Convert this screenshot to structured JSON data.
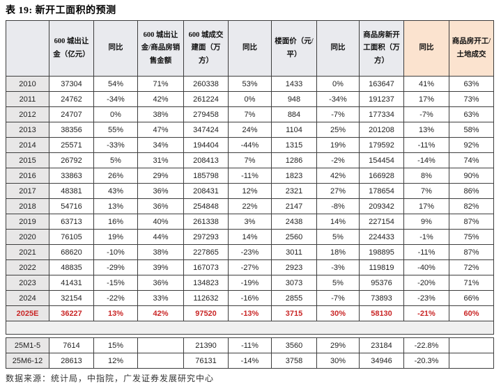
{
  "title": "表 19: 新开工面积的预测",
  "source_note": "数据来源：统计局，中指院，广发证券发展研究中心",
  "colors": {
    "header_bg": "#e9eaee",
    "forecast_header_bg": "#fbe3cf",
    "row_label_bg": "#e8e7e7",
    "separator_bg": "#f0f0f0",
    "forecast_red": "#c92525",
    "border": "#3c3c3c"
  },
  "chart_data": {
    "type": "table",
    "title": "表 19: 新开工面积的预测",
    "columns": [
      "",
      "600 城出让金（亿元）",
      "同比",
      "600 城出让金/商品房销售金额",
      "600 城成交建面（万方）",
      "同比",
      "楼面价（元/平）",
      "同比",
      "商品房新开工面积（万方）",
      "同比",
      "商品房开工/土地成交"
    ],
    "highlight_columns": [
      8,
      9,
      10
    ],
    "rows": [
      {
        "label": "2010",
        "red": false,
        "values": [
          "37304",
          "54%",
          "71%",
          "260338",
          "53%",
          "1433",
          "0%",
          "163647",
          "41%",
          "63%"
        ]
      },
      {
        "label": "2011",
        "red": false,
        "values": [
          "24762",
          "-34%",
          "42%",
          "261224",
          "0%",
          "948",
          "-34%",
          "191237",
          "17%",
          "73%"
        ]
      },
      {
        "label": "2012",
        "red": false,
        "values": [
          "24707",
          "0%",
          "38%",
          "279458",
          "7%",
          "884",
          "-7%",
          "177334",
          "-7%",
          "63%"
        ]
      },
      {
        "label": "2013",
        "red": false,
        "values": [
          "38356",
          "55%",
          "47%",
          "347424",
          "24%",
          "1104",
          "25%",
          "201208",
          "13%",
          "58%"
        ]
      },
      {
        "label": "2014",
        "red": false,
        "values": [
          "25571",
          "-33%",
          "34%",
          "194404",
          "-44%",
          "1315",
          "19%",
          "179592",
          "-11%",
          "92%"
        ]
      },
      {
        "label": "2015",
        "red": false,
        "values": [
          "26792",
          "5%",
          "31%",
          "208413",
          "7%",
          "1286",
          "-2%",
          "154454",
          "-14%",
          "74%"
        ]
      },
      {
        "label": "2016",
        "red": false,
        "values": [
          "33863",
          "26%",
          "29%",
          "185798",
          "-11%",
          "1823",
          "42%",
          "166928",
          "8%",
          "90%"
        ]
      },
      {
        "label": "2017",
        "red": false,
        "values": [
          "48381",
          "43%",
          "36%",
          "208431",
          "12%",
          "2321",
          "27%",
          "178654",
          "7%",
          "86%"
        ]
      },
      {
        "label": "2018",
        "red": false,
        "values": [
          "54716",
          "13%",
          "36%",
          "254848",
          "22%",
          "2147",
          "-8%",
          "209342",
          "17%",
          "82%"
        ]
      },
      {
        "label": "2019",
        "red": false,
        "values": [
          "63713",
          "16%",
          "40%",
          "261338",
          "3%",
          "2438",
          "14%",
          "227154",
          "9%",
          "87%"
        ]
      },
      {
        "label": "2020",
        "red": false,
        "values": [
          "76105",
          "19%",
          "44%",
          "297293",
          "14%",
          "2560",
          "5%",
          "224433",
          "-1%",
          "75%"
        ]
      },
      {
        "label": "2021",
        "red": false,
        "values": [
          "68620",
          "-10%",
          "38%",
          "227865",
          "-23%",
          "3011",
          "18%",
          "198895",
          "-11%",
          "87%"
        ]
      },
      {
        "label": "2022",
        "red": false,
        "values": [
          "48835",
          "-29%",
          "39%",
          "167073",
          "-27%",
          "2923",
          "-3%",
          "119819",
          "-40%",
          "72%"
        ]
      },
      {
        "label": "2023",
        "red": false,
        "values": [
          "41431",
          "-15%",
          "36%",
          "134823",
          "-19%",
          "3073",
          "5%",
          "95376",
          "-20%",
          "71%"
        ]
      },
      {
        "label": "2024",
        "red": false,
        "values": [
          "32154",
          "-22%",
          "33%",
          "112632",
          "-16%",
          "2855",
          "-7%",
          "73893",
          "-23%",
          "66%"
        ]
      },
      {
        "label": "2025E",
        "red": true,
        "values": [
          "36227",
          "13%",
          "42%",
          "97520",
          "-13%",
          "3715",
          "30%",
          "58130",
          "-21%",
          "60%"
        ]
      }
    ],
    "sub_rows": [
      {
        "label": "25M1-5",
        "red": false,
        "values": [
          "7614",
          "15%",
          "",
          "21390",
          "-11%",
          "3560",
          "29%",
          "23184",
          "-22.8%",
          ""
        ]
      },
      {
        "label": "25M6-12",
        "red": false,
        "values": [
          "28613",
          "12%",
          "",
          "76131",
          "-14%",
          "3758",
          "30%",
          "34946",
          "-20.3%",
          ""
        ]
      }
    ]
  }
}
